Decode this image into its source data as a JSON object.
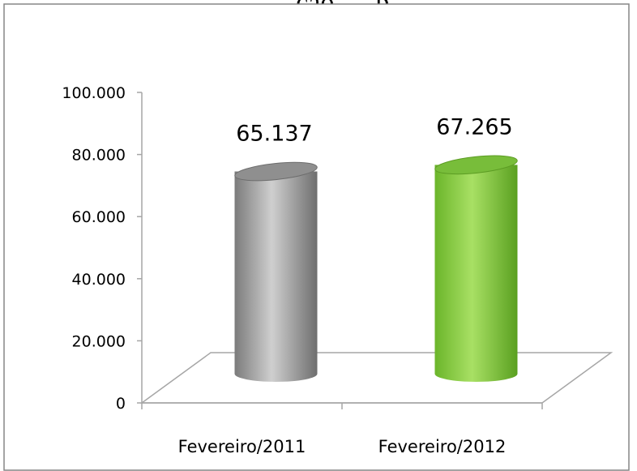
{
  "header": {
    "partial_text": ", … ção … p"
  },
  "chart_data": {
    "type": "bar",
    "title": "",
    "xlabel": "",
    "ylabel": "",
    "categories": [
      "Fevereiro/2011",
      "Fevereiro/2012"
    ],
    "values": [
      65137,
      67265
    ],
    "value_labels": [
      "65.137",
      "67.265"
    ],
    "ylim": [
      0,
      100000
    ],
    "y_ticks": [
      0,
      20000,
      40000,
      60000,
      80000,
      100000
    ],
    "y_tick_labels": [
      "0",
      "20.000",
      "40.000",
      "60.000",
      "80.000",
      "100.000"
    ],
    "grid": false,
    "bar_shape": "cylinder",
    "colors": [
      "#a6a6a6",
      "#92d050"
    ]
  }
}
